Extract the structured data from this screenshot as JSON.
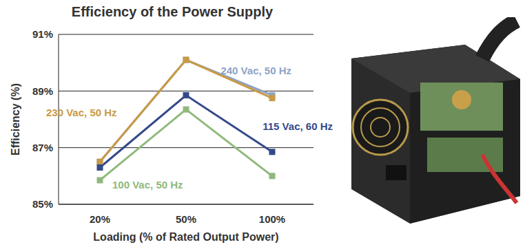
{
  "chart_data": {
    "type": "line",
    "title": "Efficiency of the Power Supply",
    "x_label": "Loading (% of Rated Output Power)",
    "y_label": "Efficiency (%)",
    "categories": [
      "20%",
      "50%",
      "100%"
    ],
    "series": [
      {
        "name": "240 Vac, 50 Hz",
        "color": "#8ea3c6",
        "values": [
          86.5,
          90.1,
          88.85
        ]
      },
      {
        "name": "230 Vac, 50 Hz",
        "color": "#c99a45",
        "values": [
          86.5,
          90.1,
          88.75
        ]
      },
      {
        "name": "115 Vac, 60 Hz",
        "color": "#34498a",
        "values": [
          86.3,
          88.85,
          86.85
        ]
      },
      {
        "name": "100 Vac, 50 Hz",
        "color": "#8fb97c",
        "values": [
          85.85,
          88.35,
          86.0
        ]
      }
    ],
    "ylim": [
      85,
      91
    ],
    "yticks": [
      {
        "value": 85,
        "label": "85%"
      },
      {
        "value": 87,
        "label": "87%"
      },
      {
        "value": 89,
        "label": "89%"
      },
      {
        "value": 91,
        "label": "91%"
      }
    ],
    "grid": true,
    "marker": "square"
  }
}
